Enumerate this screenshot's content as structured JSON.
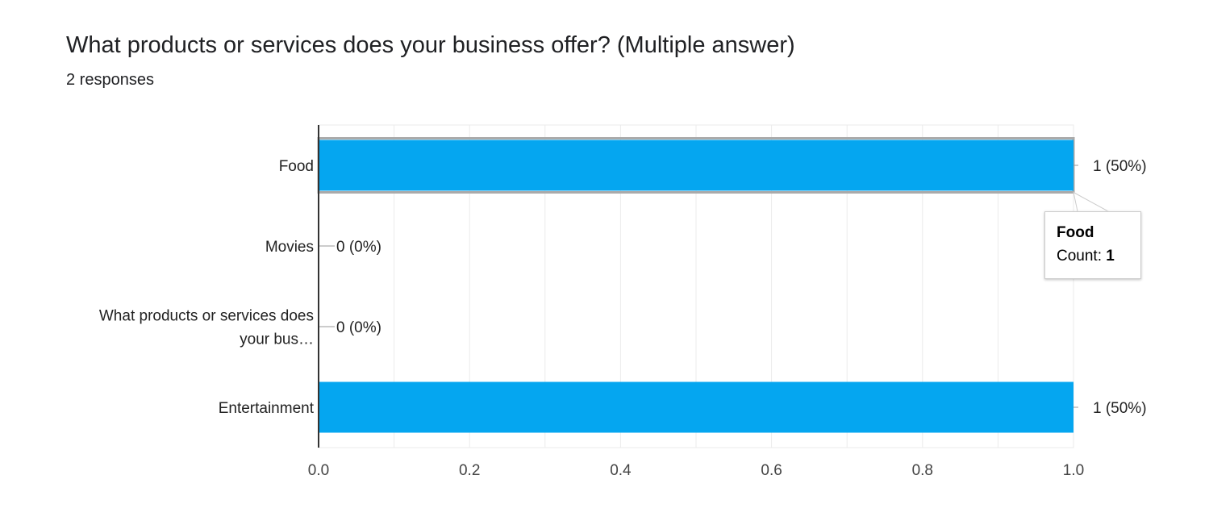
{
  "header": {
    "title": "What products or services does your business offer? (Multiple answer)",
    "subtitle": "2 responses"
  },
  "colors": {
    "bar": "#05a6f0",
    "highlight_outline": "#aaaaaa",
    "axis": "#333333",
    "grid": "#ebebeb"
  },
  "chart_data": {
    "type": "bar",
    "orientation": "horizontal",
    "categories": [
      [
        "Food"
      ],
      [
        "Movies"
      ],
      [
        "What products or services does",
        "your bus…"
      ],
      [
        "Entertainment"
      ]
    ],
    "values": [
      1,
      0,
      0,
      1
    ],
    "data_labels": [
      "1 (50%)",
      "0 (0%)",
      "0 (0%)",
      "1 (50%)"
    ],
    "xlim": [
      0,
      1
    ],
    "xticks": [
      0,
      0.2,
      0.4,
      0.6,
      0.8,
      1
    ],
    "xtick_labels": [
      "0.0",
      "0.2",
      "0.4",
      "0.6",
      "0.8",
      "1.0"
    ],
    "grid": true,
    "highlighted_category_index": 0
  },
  "tooltip": {
    "title": "Food",
    "count_label": "Count:",
    "count_value": "1"
  }
}
